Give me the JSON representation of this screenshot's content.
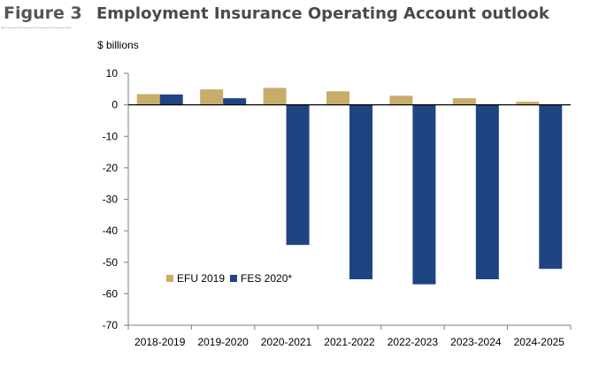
{
  "figure_label": "Figure 3",
  "title": "Employment Insurance Operating Account outlook",
  "unit_label": "$ billions",
  "colors": {
    "EFU 2019": "#c8ad6a",
    "FES 2020*": "#1f4482",
    "axis": "#7f7f7f"
  },
  "chart_data": {
    "type": "bar",
    "title": "Employment Insurance Operating Account outlook",
    "ylabel": "$ billions",
    "xlabel": "",
    "categories": [
      "2018-2019",
      "2019-2020",
      "2020-2021",
      "2021-2022",
      "2022-2023",
      "2023-2024",
      "2024-2025"
    ],
    "series": [
      {
        "name": "EFU 2019",
        "values": [
          3.4,
          4.9,
          5.4,
          4.3,
          2.9,
          2.1,
          1.0
        ]
      },
      {
        "name": "FES 2020*",
        "values": [
          3.3,
          2.1,
          -44.5,
          -55.4,
          -57.0,
          -55.4,
          -52.1
        ]
      }
    ],
    "ylim": [
      -70,
      10
    ],
    "yticks": [
      10,
      0,
      -10,
      -20,
      -30,
      -40,
      -50,
      -60,
      -70
    ],
    "grid": false,
    "legend_position": "inside bottom-left"
  }
}
